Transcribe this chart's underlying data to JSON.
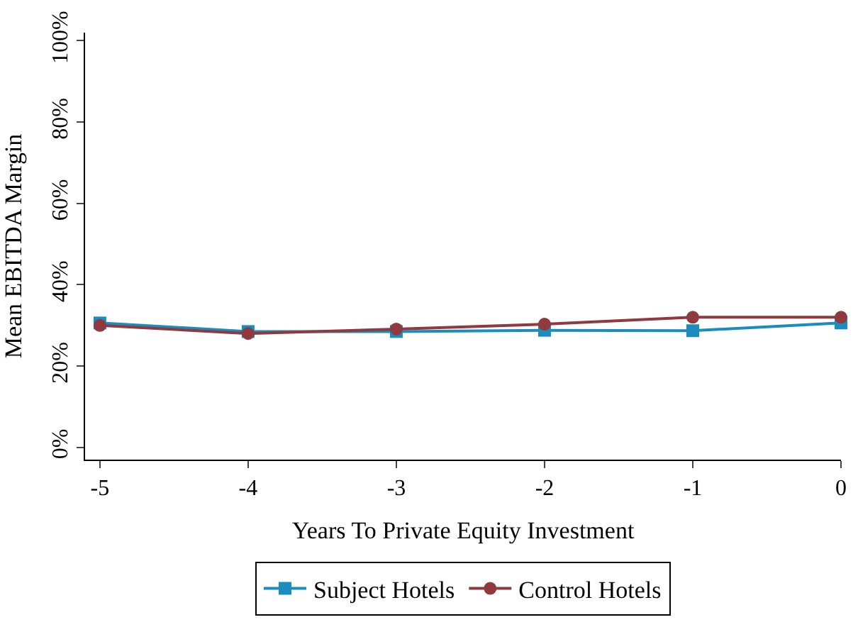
{
  "chart_data": {
    "type": "line",
    "xlabel": "Years To Private Equity Investment",
    "ylabel": "Mean EBITDA Margin",
    "x": [
      -5,
      -4,
      -3,
      -2,
      -1,
      0
    ],
    "series": [
      {
        "name": "Subject Hotels",
        "color": "#1a8cbe",
        "marker": "square",
        "values": [
          30.6,
          28.5,
          28.5,
          28.8,
          28.7,
          30.6
        ]
      },
      {
        "name": "Control Hotels",
        "color": "#903a40",
        "marker": "circle",
        "values": [
          30.0,
          28.0,
          29.1,
          30.3,
          32.0,
          32.0
        ]
      }
    ],
    "xlim": [
      -5.1,
      0
    ],
    "ylim": [
      -3,
      102
    ],
    "xticks": [
      -5,
      -4,
      -3,
      -2,
      -1,
      0
    ],
    "yticks": [
      {
        "value": 0,
        "label": "0%"
      },
      {
        "value": 20,
        "label": "20%"
      },
      {
        "value": 40,
        "label": "40%"
      },
      {
        "value": 60,
        "label": "60%"
      },
      {
        "value": 80,
        "label": "80%"
      },
      {
        "value": 100,
        "label": "100%"
      }
    ],
    "legend": "bottom",
    "line_style": "solid"
  }
}
